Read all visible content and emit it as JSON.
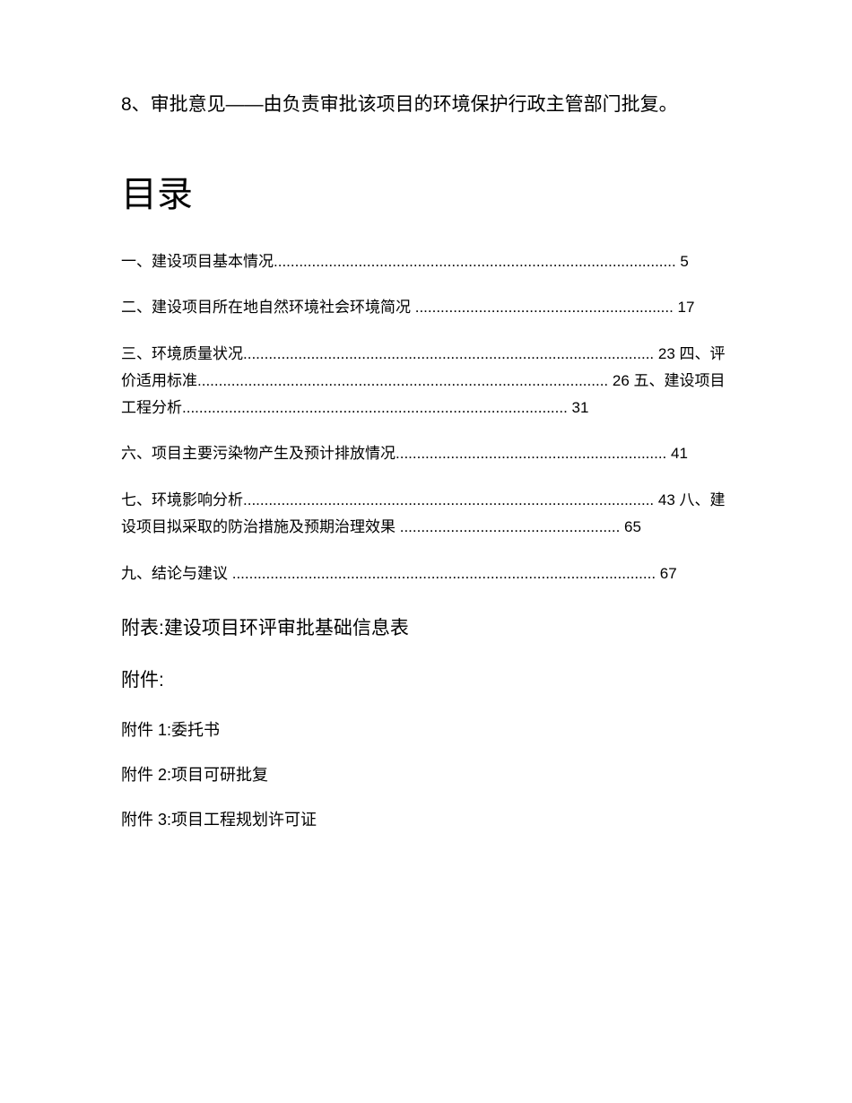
{
  "intro_line": "8、审批意见——由负责审批该项目的环境保护行政主管部门批复。",
  "toc_title": "目录",
  "toc_entries": [
    "一、建设项目基本情况............................................................................................... 5",
    "二、建设项目所在地自然环境社会环境简况 ............................................................. 17",
    "三、环境质量状况................................................................................................. 23 四、评价适用标准................................................................................................. 26 五、建设项目工程分析........................................................................................... 31",
    "六、项目主要污染物产生及预计排放情况................................................................ 41",
    "七、环境影响分析................................................................................................. 43 八、建设项目拟采取的防治措施及预期治理效果 .................................................... 65",
    "九、结论与建议 .................................................................................................... 67"
  ],
  "appendix_table": "附表:建设项目环评审批基础信息表",
  "attachments_title": "附件:",
  "attachments": [
    "附件 1:委托书",
    "附件 2:项目可研批复",
    "附件 3:项目工程规划许可证"
  ],
  "colors": {
    "background": "#ffffff",
    "text": "#000000"
  },
  "typography": {
    "intro_fontsize": 21,
    "toc_title_fontsize": 40,
    "toc_entry_fontsize": 17,
    "appendix_fontsize": 21,
    "attachment_fontsize": 18
  }
}
